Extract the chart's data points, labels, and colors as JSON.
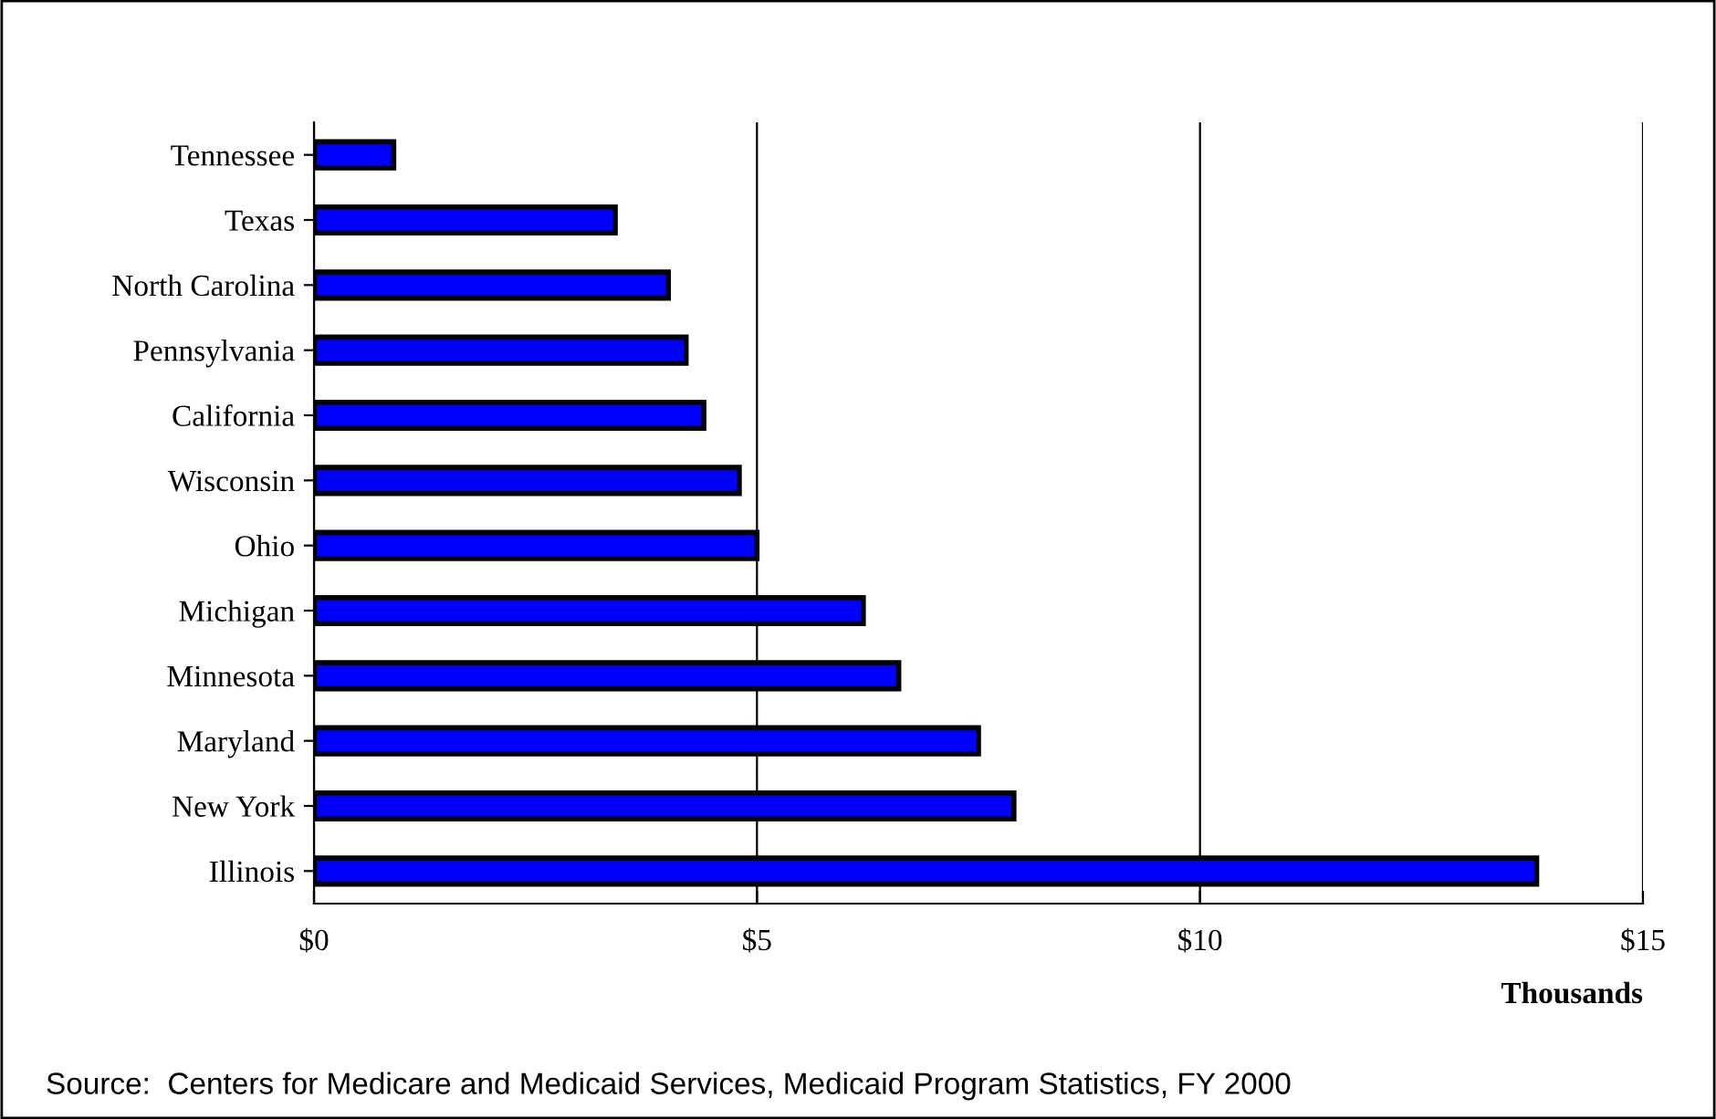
{
  "chart_data": {
    "type": "bar",
    "orientation": "horizontal",
    "categories": [
      "Tennessee",
      "Texas",
      "North Carolina",
      "Pennsylvania",
      "California",
      "Wisconsin",
      "Ohio",
      "Michigan",
      "Minnesota",
      "Maryland",
      "New York",
      "Illinois"
    ],
    "values": [
      0.9,
      3.4,
      4.0,
      4.2,
      4.4,
      4.8,
      5.0,
      6.2,
      6.6,
      7.5,
      7.9,
      13.8
    ],
    "color": "#0000ff",
    "xlim": [
      0,
      15
    ],
    "xticks": [
      {
        "value": 0,
        "label": "$0"
      },
      {
        "value": 5,
        "label": "$5"
      },
      {
        "value": 10,
        "label": "$10"
      },
      {
        "value": 15,
        "label": "$15"
      }
    ],
    "xlabel": "Thousands",
    "grid": "x",
    "annotations": [
      "Source:  Centers for Medicare and Medicaid Services, Medicaid Program Statistics, FY 2000"
    ]
  }
}
